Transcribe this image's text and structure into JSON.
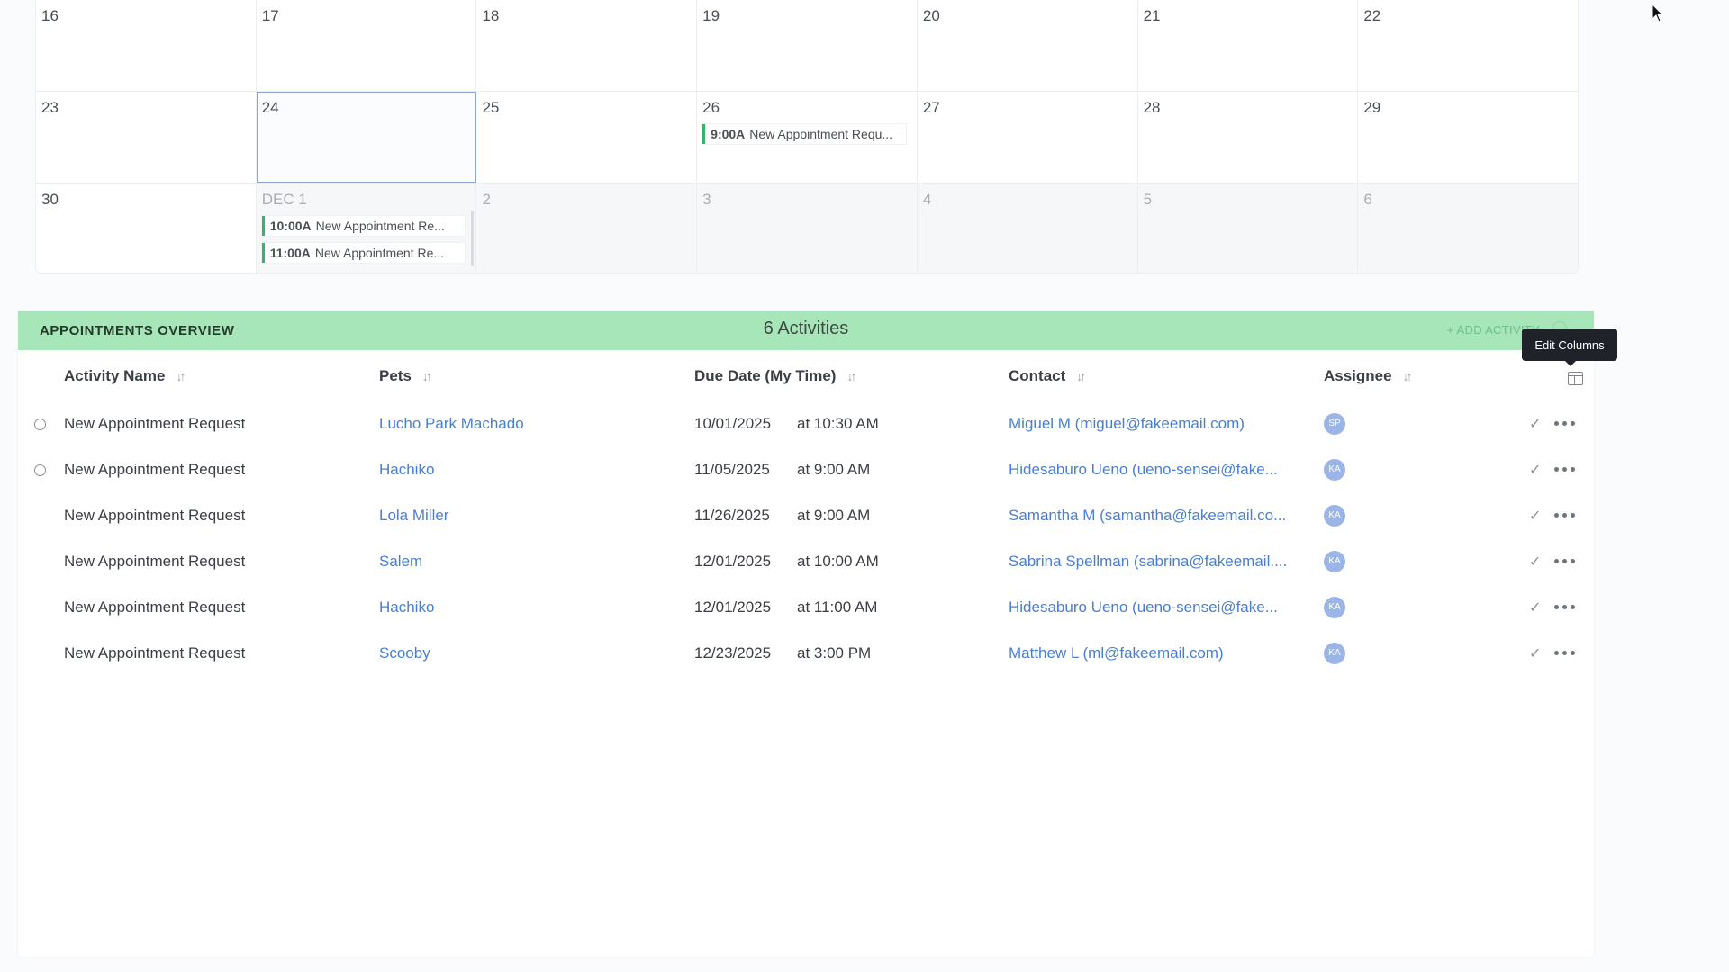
{
  "calendar": {
    "weeks": [
      {
        "days": [
          {
            "num": "16",
            "events": []
          },
          {
            "num": "17",
            "events": []
          },
          {
            "num": "18",
            "events": []
          },
          {
            "num": "19",
            "events": []
          },
          {
            "num": "20",
            "events": []
          },
          {
            "num": "21",
            "events": []
          },
          {
            "num": "22",
            "events": []
          }
        ]
      },
      {
        "days": [
          {
            "num": "23",
            "events": []
          },
          {
            "num": "24",
            "events": [],
            "today": true
          },
          {
            "num": "25",
            "events": []
          },
          {
            "num": "26",
            "events": [
              {
                "time": "9:00A",
                "title": "New Appointment Requ..."
              }
            ]
          },
          {
            "num": "27",
            "events": []
          },
          {
            "num": "28",
            "events": []
          },
          {
            "num": "29",
            "events": []
          }
        ]
      },
      {
        "days": [
          {
            "num": "30",
            "events": []
          },
          {
            "num": "DEC 1",
            "next": true,
            "events": [
              {
                "time": "10:00A",
                "title": "New Appointment Re..."
              },
              {
                "time": "11:00A",
                "title": "New Appointment Re..."
              }
            ]
          },
          {
            "num": "2",
            "next": true,
            "events": []
          },
          {
            "num": "3",
            "next": true,
            "events": []
          },
          {
            "num": "4",
            "next": true,
            "events": []
          },
          {
            "num": "5",
            "next": true,
            "events": []
          },
          {
            "num": "6",
            "next": true,
            "events": []
          }
        ]
      }
    ]
  },
  "overview": {
    "title": "APPOINTMENTS OVERVIEW",
    "count": "6 Activities",
    "add_label": "+ ADD ACTIVITY",
    "tooltip": "Edit Columns",
    "columns": {
      "activity": "Activity Name",
      "pets": "Pets",
      "due": "Due Date (My Time)",
      "contact": "Contact",
      "assignee": "Assignee"
    },
    "sort_glyph": "↓↑",
    "check_glyph": "✓",
    "rows": [
      {
        "radio": true,
        "activity": "New Appointment Request",
        "pet": "Lucho Park Machado",
        "date": "10/01/2025",
        "time": "at 10:30 AM",
        "contact": "Miguel M (miguel@fakeemail.com)",
        "assignee": "SP"
      },
      {
        "radio": true,
        "activity": "New Appointment Request",
        "pet": "Hachiko",
        "date": "11/05/2025",
        "time": "at 9:00 AM",
        "contact": "Hidesaburo Ueno (ueno-sensei@fake...",
        "assignee": "KA"
      },
      {
        "radio": false,
        "activity": "New Appointment Request",
        "pet": "Lola Miller",
        "date": "11/26/2025",
        "time": "at 9:00 AM",
        "contact": "Samantha M (samantha@fakeemail.co...",
        "assignee": "KA"
      },
      {
        "radio": false,
        "activity": "New Appointment Request",
        "pet": "Salem",
        "date": "12/01/2025",
        "time": "at 10:00 AM",
        "contact": "Sabrina Spellman (sabrina@fakeemail....",
        "assignee": "KA"
      },
      {
        "radio": false,
        "activity": "New Appointment Request",
        "pet": "Hachiko",
        "date": "12/01/2025",
        "time": "at 11:00 AM",
        "contact": "Hidesaburo Ueno (ueno-sensei@fake...",
        "assignee": "KA"
      },
      {
        "radio": false,
        "activity": "New Appointment Request",
        "pet": "Scooby",
        "date": "12/23/2025",
        "time": "at 3:00 PM",
        "contact": "Matthew L (ml@fakeemail.com)",
        "assignee": "KA"
      }
    ]
  }
}
